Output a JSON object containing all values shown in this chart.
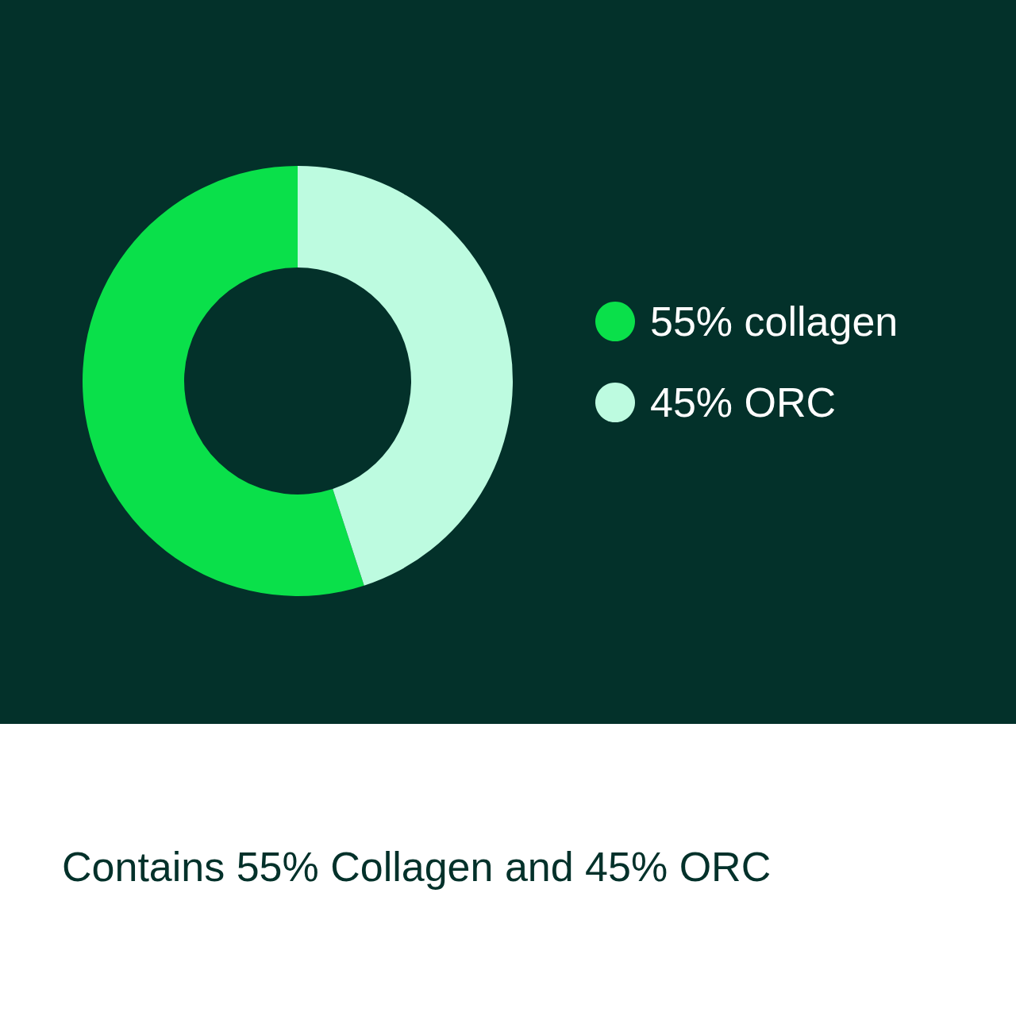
{
  "chart_data": {
    "type": "donut",
    "categories": [
      "55% collagen",
      "45% ORC"
    ],
    "values": [
      55,
      45
    ],
    "colors": [
      "#0ae04a",
      "#bdfbe0"
    ],
    "legend": "right",
    "annotations": [
      "Contains 55% Collagen and 45% ORC"
    ]
  }
}
